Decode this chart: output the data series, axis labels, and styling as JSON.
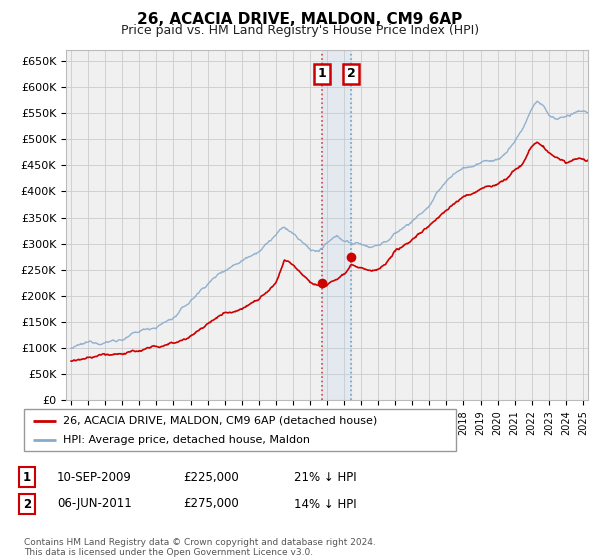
{
  "title": "26, ACACIA DRIVE, MALDON, CM9 6AP",
  "subtitle": "Price paid vs. HM Land Registry's House Price Index (HPI)",
  "ylabel_ticks": [
    "£0",
    "£50K",
    "£100K",
    "£150K",
    "£200K",
    "£250K",
    "£300K",
    "£350K",
    "£400K",
    "£450K",
    "£500K",
    "£550K",
    "£600K",
    "£650K"
  ],
  "ytick_values": [
    0,
    50000,
    100000,
    150000,
    200000,
    250000,
    300000,
    350000,
    400000,
    450000,
    500000,
    550000,
    600000,
    650000
  ],
  "xlim_start": 1994.7,
  "xlim_end": 2025.3,
  "ylim_min": 0,
  "ylim_max": 670000,
  "sale1_date": 2009.69,
  "sale1_price": 225000,
  "sale2_date": 2011.42,
  "sale2_price": 275000,
  "legend_line1": "26, ACACIA DRIVE, MALDON, CM9 6AP (detached house)",
  "legend_line2": "HPI: Average price, detached house, Maldon",
  "footnote": "Contains HM Land Registry data © Crown copyright and database right 2024.\nThis data is licensed under the Open Government Licence v3.0.",
  "red_color": "#cc0000",
  "blue_color": "#88aacc",
  "grid_color": "#cccccc",
  "bg_color": "#ffffff",
  "plot_bg": "#f0f0f0"
}
